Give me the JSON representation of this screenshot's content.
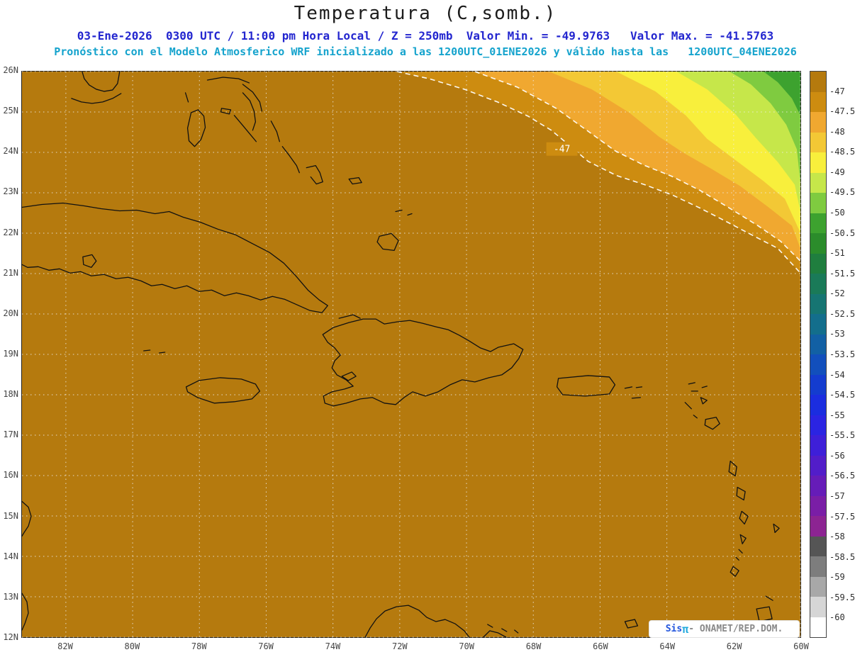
{
  "title": "Temperatura (C,somb.)",
  "header": {
    "datetime_line": "03-Ene-2026  0300 UTC / 11:00 pm Hora Local / Z = 250mb  Valor Min. = -49.9763   Valor Max. = -41.5763",
    "model_line": "Pronóstico con el Modelo Atmosferico WRF inicializado a las 1200UTC_01ENE2026 y válido hasta las   1200UTC_04ENE2026"
  },
  "axes": {
    "lat": [
      "26N",
      "25N",
      "24N",
      "23N",
      "22N",
      "21N",
      "20N",
      "19N",
      "18N",
      "17N",
      "16N",
      "15N",
      "14N",
      "13N",
      "12N"
    ],
    "lon": [
      "82W",
      "80W",
      "78W",
      "76W",
      "74W",
      "72W",
      "70W",
      "68W",
      "66W",
      "64W",
      "62W",
      "60W"
    ]
  },
  "map": {
    "contour_label": "-47"
  },
  "colorbar": {
    "labels": [
      "-47",
      "-47.5",
      "-48",
      "-48.5",
      "-49",
      "-49.5",
      "-50",
      "-50.5",
      "-51",
      "-51.5",
      "-52",
      "-52.5",
      "-53",
      "-53.5",
      "-54",
      "-54.5",
      "-55",
      "-55.5",
      "-56",
      "-56.5",
      "-57",
      "-57.5",
      "-58",
      "-58.5",
      "-59",
      "-59.5",
      "-60"
    ],
    "colors": [
      "#b57a0e",
      "#cd8c10",
      "#f0a830",
      "#f3c835",
      "#f8ef3c",
      "#c6e74a",
      "#7fcb40",
      "#3da22f",
      "#2b8c2b",
      "#1f7e3e",
      "#1a7a58",
      "#167572",
      "#136e8c",
      "#1260a4",
      "#124fbc",
      "#143ccf",
      "#1b2ddf",
      "#2b24e2",
      "#3e1fd8",
      "#521dc9",
      "#661cb8",
      "#7a1ea6",
      "#8c2492",
      "#555555",
      "#7d7d7d",
      "#a8a8a8",
      "#d6d6d6",
      "#ffffff"
    ]
  },
  "watermark": {
    "brand": "Sis",
    "symbol": "π",
    "text": "- ONAMET/REP.DOM."
  }
}
